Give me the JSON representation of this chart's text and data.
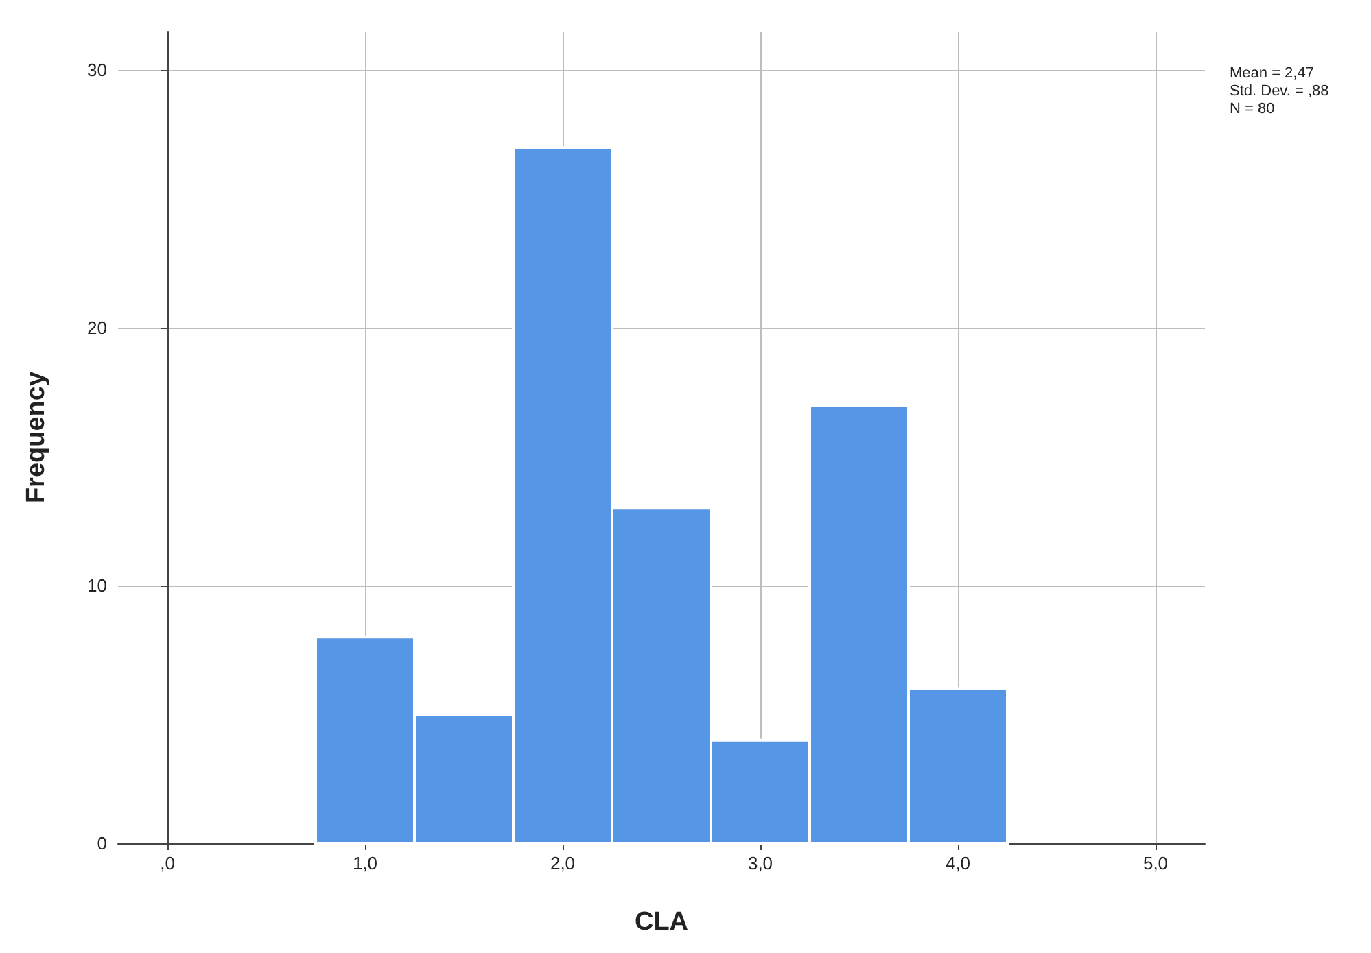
{
  "chart_data": {
    "type": "histogram",
    "xlabel": "CLA",
    "ylabel": "Frequency",
    "bins": [
      0.75,
      1.25,
      1.75,
      2.25,
      2.75,
      3.25,
      3.75,
      4.25
    ],
    "values": [
      8,
      5,
      27,
      13,
      4,
      17,
      6
    ],
    "color": "#5596e6",
    "xlim": [
      -0.25,
      5.25
    ],
    "xticks": [
      {
        "value": 0,
        "label": ",0"
      },
      {
        "value": 1,
        "label": "1,0"
      },
      {
        "value": 2,
        "label": "2,0"
      },
      {
        "value": 3,
        "label": "3,0"
      },
      {
        "value": 4,
        "label": "4,0"
      },
      {
        "value": 5,
        "label": "5,0"
      }
    ],
    "ylim": [
      0,
      31.5
    ],
    "yticks": [
      0,
      10,
      20,
      30
    ],
    "grid": true,
    "annotations": [
      "Mean = 2,47",
      "Std. Dev. = ,88",
      "N = 80"
    ]
  }
}
